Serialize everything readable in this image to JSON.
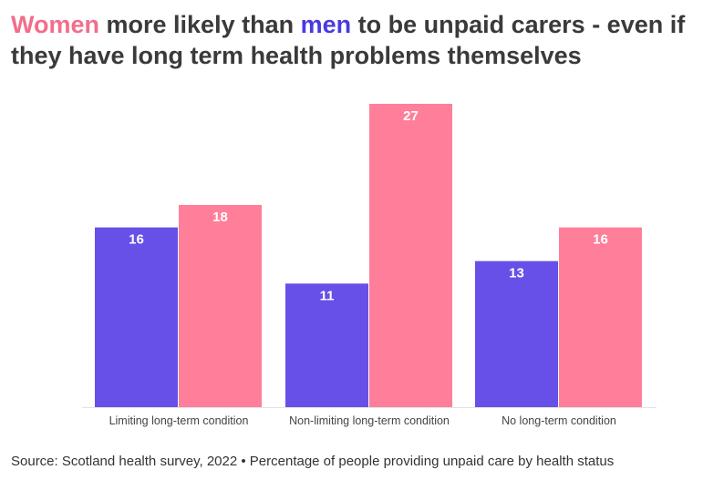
{
  "title": {
    "women_word": "Women",
    "middle_text": " more likely than ",
    "men_word": "men",
    "rest_text": " to be unpaid carers - even if they have long term health problems themselves"
  },
  "colors": {
    "men": "#6650e8",
    "women": "#ff7f9a"
  },
  "source": "Source: Scotland health survey, 2022 • Percentage of people providing unpaid care by health status",
  "chart_data": {
    "type": "bar",
    "title": "Women more likely than men to be unpaid carers - even if they have long term health problems themselves",
    "categories": [
      "Limiting long-term condition",
      "Non-limiting long-term condition",
      "No long-term condition"
    ],
    "series": [
      {
        "name": "men",
        "values": [
          16,
          11,
          13
        ]
      },
      {
        "name": "women",
        "values": [
          18,
          27,
          16
        ]
      }
    ],
    "xlabel": "",
    "ylabel": "",
    "ylim": [
      0,
      27
    ],
    "grid": false
  }
}
